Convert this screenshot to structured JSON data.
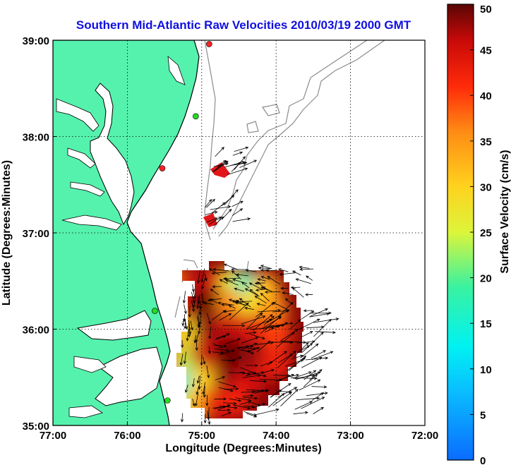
{
  "title": "Southern Mid-Atlantic Raw Velocities 2010/03/19 2000 GMT",
  "xlabel": "Longitude (Degrees:Minutes)",
  "ylabel": "Latitude (Degrees:Minutes)",
  "colorbar_label": "Surface Velocity (cm/s)",
  "colors": {
    "title": "#1010e0",
    "land": "#55f2ad",
    "coast": "#000000",
    "bathymetry": "#8c8c8c",
    "site_active": "#22dd22",
    "site_inactive": "#ff2222"
  },
  "chart_data": {
    "type": "heatmap",
    "title": "Southern Mid-Atlantic Raw Velocities 2010/03/19 2000 GMT",
    "xlabel": "Longitude (Degrees:Minutes)",
    "ylabel": "Latitude (Degrees:Minutes)",
    "xlim": [
      -77,
      -72
    ],
    "ylim": [
      35,
      39
    ],
    "grid": true,
    "x_ticks": [
      {
        "value": -77,
        "label": "77:00"
      },
      {
        "value": -76,
        "label": "76:00"
      },
      {
        "value": -75,
        "label": "75:00"
      },
      {
        "value": -74,
        "label": "74:00"
      },
      {
        "value": -73,
        "label": "73:00"
      },
      {
        "value": -72,
        "label": "72:00"
      }
    ],
    "y_ticks": [
      {
        "value": 35,
        "label": "35:00"
      },
      {
        "value": 36,
        "label": "36:00"
      },
      {
        "value": 37,
        "label": "37:00"
      },
      {
        "value": 38,
        "label": "38:00"
      },
      {
        "value": 39,
        "label": "39:00"
      }
    ],
    "colorbar": {
      "label": "Surface Velocity (cm/s)",
      "range": [
        0,
        50
      ],
      "ticks": [
        0,
        5,
        10,
        15,
        20,
        25,
        30,
        35,
        40,
        45,
        50
      ]
    },
    "sites": [
      {
        "lon": -74.9,
        "lat": 38.96,
        "status": "inactive"
      },
      {
        "lon": -75.08,
        "lat": 38.21,
        "status": "active"
      },
      {
        "lon": -75.53,
        "lat": 37.67,
        "status": "inactive"
      },
      {
        "lon": -75.63,
        "lat": 36.19,
        "status": "active"
      },
      {
        "lon": -75.46,
        "lat": 35.26,
        "status": "active"
      }
    ],
    "velocity_field": [
      {
        "lon": -75.35,
        "lat": 36.48,
        "speed": 36
      },
      {
        "lon": -75.15,
        "lat": 36.45,
        "speed": 44
      },
      {
        "lon": -74.95,
        "lat": 36.48,
        "speed": 47
      },
      {
        "lon": -74.75,
        "lat": 36.48,
        "speed": 44
      },
      {
        "lon": -74.55,
        "lat": 36.48,
        "speed": 26
      },
      {
        "lon": -74.35,
        "lat": 36.45,
        "speed": 16
      },
      {
        "lon": -74.15,
        "lat": 36.42,
        "speed": 32
      },
      {
        "lon": -75.45,
        "lat": 36.25,
        "speed": 40
      },
      {
        "lon": -75.25,
        "lat": 36.25,
        "speed": 42
      },
      {
        "lon": -75.05,
        "lat": 36.25,
        "speed": 48
      },
      {
        "lon": -74.85,
        "lat": 36.25,
        "speed": 50
      },
      {
        "lon": -74.6,
        "lat": 36.25,
        "speed": 36
      },
      {
        "lon": -74.3,
        "lat": 36.25,
        "speed": 28
      },
      {
        "lon": -74.05,
        "lat": 36.2,
        "speed": 35
      },
      {
        "lon": -75.4,
        "lat": 36.0,
        "speed": 38
      },
      {
        "lon": -75.15,
        "lat": 35.95,
        "speed": 28
      },
      {
        "lon": -74.9,
        "lat": 36.0,
        "speed": 48
      },
      {
        "lon": -74.6,
        "lat": 36.0,
        "speed": 46
      },
      {
        "lon": -74.3,
        "lat": 36.0,
        "speed": 44
      },
      {
        "lon": -74.0,
        "lat": 35.95,
        "speed": 40
      },
      {
        "lon": -75.5,
        "lat": 35.75,
        "speed": 42
      },
      {
        "lon": -75.2,
        "lat": 35.65,
        "speed": 24
      },
      {
        "lon": -74.95,
        "lat": 35.75,
        "speed": 46
      },
      {
        "lon": -74.6,
        "lat": 35.75,
        "speed": 50
      },
      {
        "lon": -74.3,
        "lat": 35.7,
        "speed": 48
      },
      {
        "lon": -74.0,
        "lat": 35.65,
        "speed": 42
      },
      {
        "lon": -75.45,
        "lat": 35.5,
        "speed": 40
      },
      {
        "lon": -75.2,
        "lat": 35.4,
        "speed": 14
      },
      {
        "lon": -74.95,
        "lat": 35.45,
        "speed": 30
      },
      {
        "lon": -74.65,
        "lat": 35.45,
        "speed": 48
      },
      {
        "lon": -74.35,
        "lat": 35.45,
        "speed": 45
      },
      {
        "lon": -75.3,
        "lat": 35.22,
        "speed": 22
      },
      {
        "lon": -75.05,
        "lat": 35.22,
        "speed": 32
      },
      {
        "lon": -74.8,
        "lat": 35.22,
        "speed": 44
      },
      {
        "lon": -74.55,
        "lat": 35.25,
        "speed": 42
      },
      {
        "lon": -75.15,
        "lat": 37.55,
        "speed": 46
      },
      {
        "lon": -75.2,
        "lat": 37.15,
        "speed": 47
      }
    ]
  }
}
